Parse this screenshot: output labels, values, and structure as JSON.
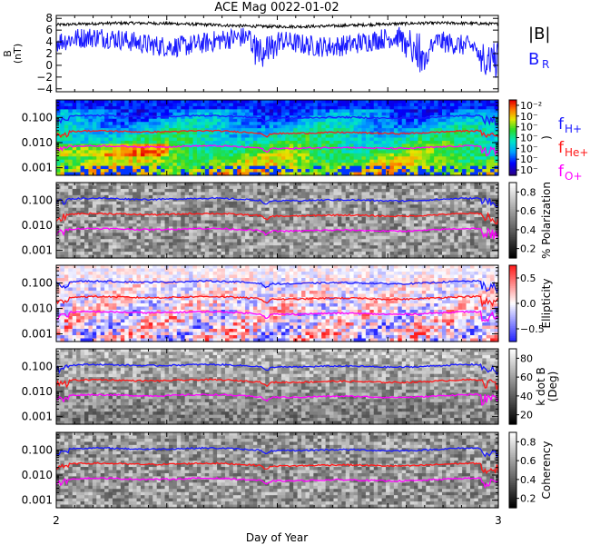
{
  "chart_data": {
    "type": "spectrogram-panels",
    "title": "ACE Mag 0022-01-02",
    "xlabel": "Day of Year",
    "x_ticks": [
      "2",
      "3"
    ],
    "xlim": [
      2,
      3
    ],
    "panels": [
      {
        "id": "field",
        "type": "line",
        "ylabel": "B",
        "ylabel_units": "(nT)",
        "y_ticks": [
          "8",
          "6",
          "4",
          "2",
          "0",
          "−2",
          "−4"
        ],
        "ylim": [
          -4.5,
          8.5
        ],
        "series": [
          {
            "name": "|B|",
            "color": "#000000",
            "mean": 6.9,
            "noise": 0.25
          },
          {
            "name": "B",
            "sub": "R",
            "color": "#1a1aff",
            "mean": 4.0,
            "noise": 1.8
          }
        ],
        "legend": [
          {
            "main": "|B|",
            "sub": "",
            "color": "#000000"
          },
          {
            "main": "B",
            "sub": "R",
            "color": "#1a1aff"
          }
        ]
      },
      {
        "id": "power",
        "type": "heatmap",
        "colormap": "rainbow",
        "y_ticks": [
          "0.100",
          "0.010",
          "0.001"
        ],
        "ylim": [
          0.0005,
          0.5
        ],
        "colorbar_ticks": [
          "10⁻²",
          "10⁻",
          "10⁻",
          "10⁻",
          "10⁻",
          "10⁻",
          "10⁻"
        ],
        "colorbar_label": ")",
        "legend": [
          {
            "main": "f",
            "sub": "H+",
            "color": "#1a1aff"
          },
          {
            "main": "f",
            "sub": "He+",
            "color": "#ff1a1a"
          },
          {
            "main": "f",
            "sub": "O+",
            "color": "#ff00ff"
          }
        ]
      },
      {
        "id": "polarization",
        "type": "heatmap",
        "colormap": "gray",
        "y_ticks": [
          "0.100",
          "0.010",
          "0.001"
        ],
        "ylim": [
          0.0005,
          0.5
        ],
        "colorbar_ticks": [
          "0.8",
          "0.6",
          "0.4",
          "0.2"
        ],
        "colorbar_label": "% Polarization"
      },
      {
        "id": "ellipticity",
        "type": "heatmap",
        "colormap": "bwr",
        "y_ticks": [
          "0.100",
          "0.010",
          "0.001"
        ],
        "ylim": [
          0.0005,
          0.5
        ],
        "colorbar_ticks": [
          "0.5",
          "0.0",
          "−0.5"
        ],
        "colorbar_label": "Ellipticity"
      },
      {
        "id": "kdotb",
        "type": "heatmap",
        "colormap": "gray",
        "y_ticks": [
          "0.100",
          "0.010",
          "0.001"
        ],
        "ylim": [
          0.0005,
          0.5
        ],
        "colorbar_ticks": [
          "80",
          "60",
          "40",
          "20"
        ],
        "colorbar_label": "k dot B",
        "colorbar_label2": "(Deg)"
      },
      {
        "id": "coherency",
        "type": "heatmap",
        "colormap": "gray",
        "y_ticks": [
          "0.100",
          "0.010",
          "0.001"
        ],
        "ylim": [
          0.0005,
          0.5
        ],
        "colorbar_ticks": [
          "0.8",
          "0.6",
          "0.4",
          "0.2"
        ],
        "colorbar_label": "Coherency"
      }
    ],
    "gyro_lines": [
      {
        "name": "H+",
        "color": "#1a1aff",
        "value": 0.105
      },
      {
        "name": "He+",
        "color": "#ff1a1a",
        "value": 0.026
      },
      {
        "name": "O+",
        "color": "#ff00ff",
        "value": 0.0066
      }
    ]
  }
}
